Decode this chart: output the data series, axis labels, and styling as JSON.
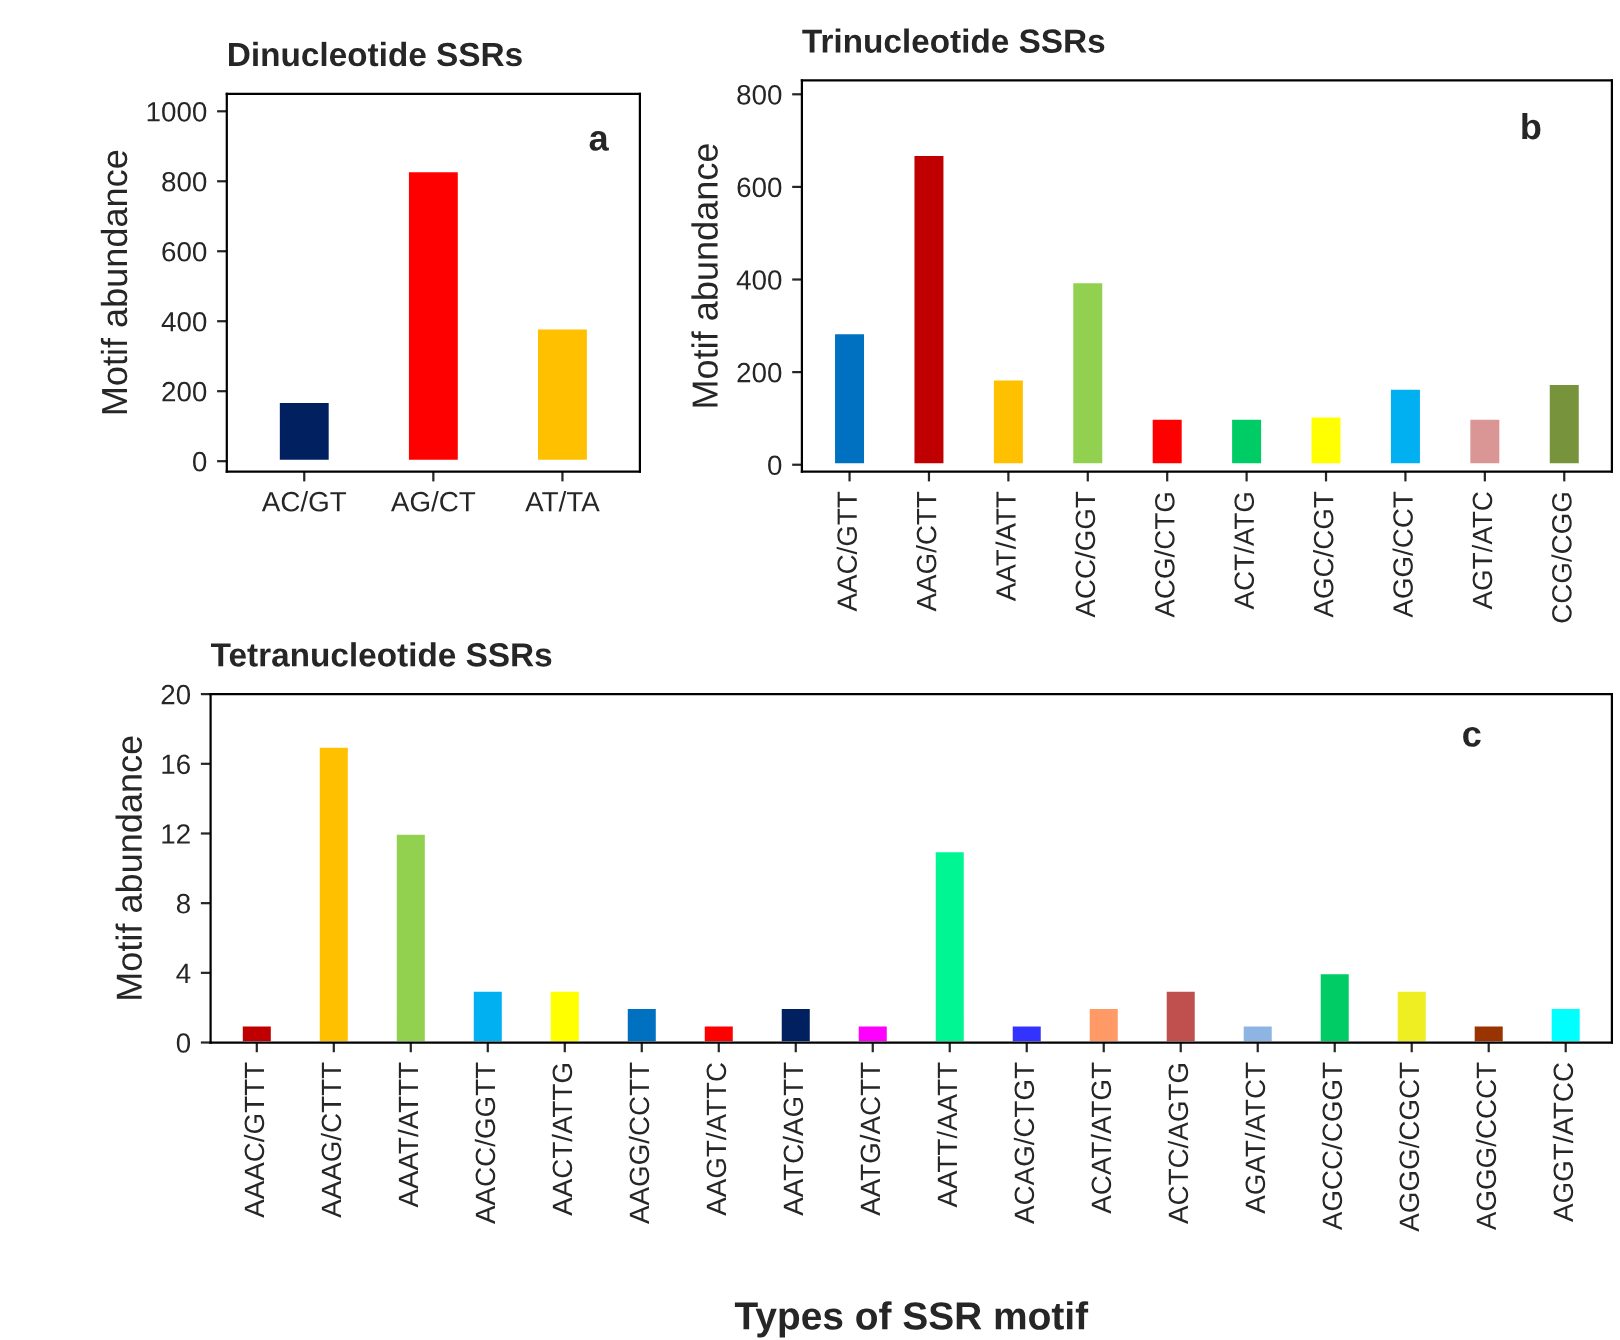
{
  "chart_data": [
    {
      "type": "bar",
      "title": "Dinucleotide SSRs",
      "ylabel": "Motif abundance",
      "annotations": [
        "a"
      ],
      "categories": [
        "AC/GT",
        "AG/CT",
        "AT/TA"
      ],
      "values": [
        170,
        830,
        380
      ],
      "colors": [
        "#002060",
        "#ff0000",
        "#ffc000"
      ],
      "ylim": [
        -30,
        1050
      ],
      "yticks": [
        0,
        200,
        400,
        600,
        800,
        1000
      ],
      "grid": false,
      "legend": false
    },
    {
      "type": "bar",
      "title": "Trinucleotide SSRs",
      "ylabel": "Motif abundance",
      "annotations": [
        "b"
      ],
      "categories": [
        "AAC/GTT",
        "AAG/CTT",
        "AAT/ATT",
        "ACC/GGT",
        "ACG/CTG",
        "ACT/ATG",
        "AGC/CGT",
        "AGG/CCT",
        "AGT/ATC",
        "CCG/CGG"
      ],
      "values": [
        285,
        670,
        185,
        395,
        100,
        100,
        105,
        165,
        100,
        175
      ],
      "colors": [
        "#0070c0",
        "#c00000",
        "#ffc000",
        "#92d050",
        "#ff0000",
        "#00cc66",
        "#ffff00",
        "#00b0f0",
        "#d99694",
        "#77933c"
      ],
      "ylim": [
        -15,
        830
      ],
      "yticks": [
        0,
        200,
        400,
        600,
        800
      ],
      "grid": false,
      "legend": false
    },
    {
      "type": "bar",
      "title": "Tetranucleotide SSRs",
      "ylabel": "Motif abundance",
      "xlabel": "Types of SSR motif",
      "annotations": [
        "c"
      ],
      "categories": [
        "AAAC/GTTT",
        "AAAG/CTTT",
        "AAAT/ATTT",
        "AACC/GGTT",
        "AACT/ATTG",
        "AAGG/CCTT",
        "AAGT/ATTC",
        "AATC/AGTT",
        "AATG/ACTT",
        "AATT/AATT",
        "ACAG/CTGT",
        "ACAT/ATGT",
        "ACTC/AGTG",
        "AGAT/ATCT",
        "AGCC/CGGT",
        "AGGG/CGCT",
        "AGGG/CCCT",
        "AGGT/ATCC"
      ],
      "values": [
        1,
        17,
        12,
        3,
        3,
        2,
        1,
        2,
        1,
        11,
        1,
        2,
        3,
        1,
        4,
        3,
        1,
        2
      ],
      "colors": [
        "#c00000",
        "#ffc000",
        "#92d050",
        "#00b0f0",
        "#ffff00",
        "#0070c0",
        "#ff0000",
        "#002060",
        "#ff00ff",
        "#00f593",
        "#3333ff",
        "#ff9966",
        "#c0504d",
        "#8db4e2",
        "#00cc66",
        "#eeee22",
        "#993300",
        "#00ffff"
      ],
      "ylim": [
        0,
        20
      ],
      "yticks": [
        0,
        4,
        8,
        12,
        16,
        20
      ],
      "grid": false,
      "legend": false
    }
  ]
}
